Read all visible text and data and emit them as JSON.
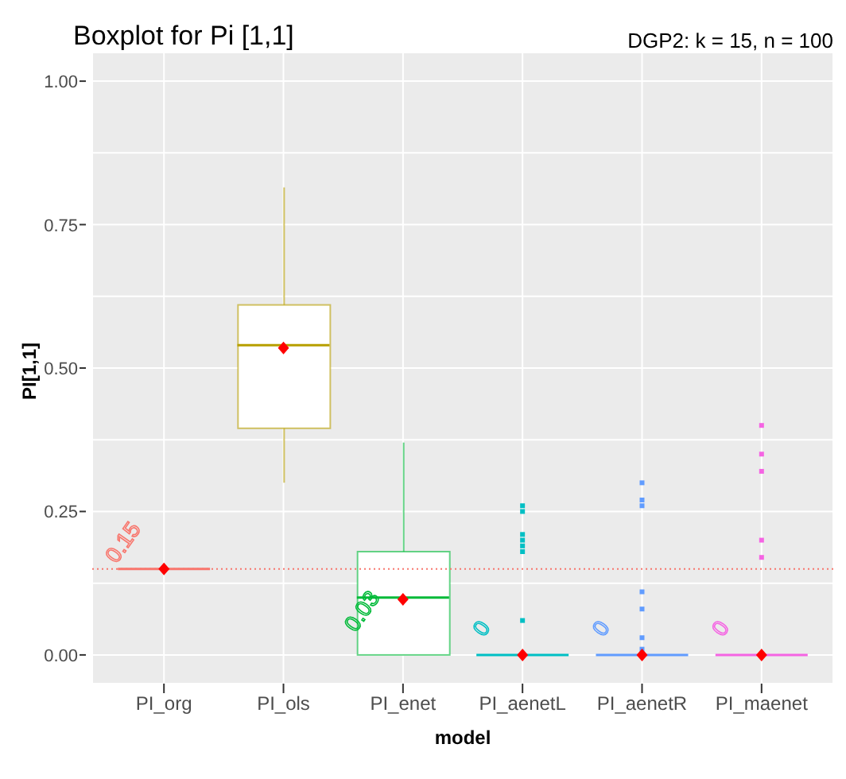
{
  "chart_data": {
    "type": "box",
    "title": "Boxplot for Pi [1,1]",
    "subtitle": "DGP2: k = 15, n = 100",
    "xlabel": "model",
    "ylabel": "PI[1,1]",
    "categories": [
      "PI_org",
      "PI_ols",
      "PI_enet",
      "PI_aenetL",
      "PI_aenetR",
      "PI_maenet"
    ],
    "colors": [
      "#f8766d",
      "#b79f00",
      "#00ba38",
      "#00bfc4",
      "#619cff",
      "#f564e3"
    ],
    "boxes": [
      {
        "low": 0.15,
        "q1": 0.15,
        "median": 0.15,
        "q3": 0.15,
        "high": 0.15,
        "mean": 0.15
      },
      {
        "low": 0.3,
        "q1": 0.395,
        "median": 0.54,
        "q3": 0.61,
        "high": 0.815,
        "mean": 0.535
      },
      {
        "low": 0,
        "q1": 0,
        "median": 0.1,
        "q3": 0.18,
        "high": 0.37,
        "mean": 0.097
      },
      {
        "low": 0,
        "q1": 0,
        "median": 0,
        "q3": 0,
        "high": 0,
        "mean": 0,
        "outliers": [
          0.26,
          0.25,
          0.21,
          0.2,
          0.19,
          0.18,
          0.06
        ]
      },
      {
        "low": 0,
        "q1": 0,
        "median": 0,
        "q3": 0,
        "high": 0,
        "mean": 0,
        "outliers": [
          0.3,
          0.27,
          0.26,
          0.11,
          0.08,
          0.03,
          0.01
        ]
      },
      {
        "low": 0,
        "q1": 0,
        "median": 0,
        "q3": 0,
        "high": 0,
        "mean": 0,
        "outliers": [
          0.4,
          0.35,
          0.32,
          0.2,
          0.17
        ]
      }
    ],
    "ylim": [
      -0.05,
      1.05
    ],
    "yticks": [
      {
        "value": 0,
        "label": "0.00"
      },
      {
        "value": 0.125,
        "label": null
      },
      0.25,
      {
        "value": 0.375,
        "label": null
      },
      {
        "value": 0.5,
        "label": "0.50"
      },
      {
        "value": 0.625,
        "label": null
      },
      0.75,
      {
        "value": 0.875,
        "label": null
      },
      {
        "value": 1,
        "label": "1.00"
      }
    ],
    "grid": true,
    "ref_lines": [
      {
        "axis": "y",
        "value": 0.15,
        "color": "#f8766d",
        "line_style": "dotted"
      }
    ],
    "annotations": [
      {
        "text": "0.15",
        "x": "PI_org",
        "y": 0.15
      },
      {
        "text": "0.03",
        "x": "PI_enet",
        "y": 0.03
      },
      {
        "text": "0",
        "x": "PI_aenetL",
        "y": 0
      },
      {
        "text": "0",
        "x": "PI_aenetR",
        "y": 0
      },
      {
        "text": "0",
        "x": "PI_maenet",
        "y": 0
      }
    ]
  }
}
